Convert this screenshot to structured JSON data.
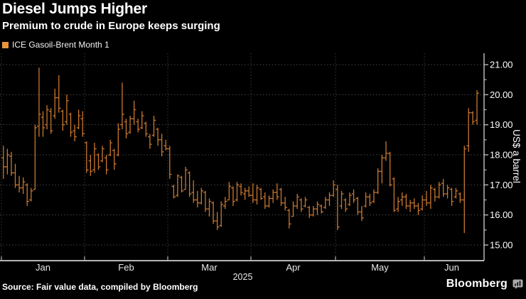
{
  "header": {
    "title": "Diesel Jumps Higher",
    "subtitle": "Premium to crude in Europe keeps surging"
  },
  "legend": {
    "label": "ICE Gasoil-Brent Month 1",
    "swatch_color": "#e8953c"
  },
  "chart_data": {
    "type": "ohlc",
    "title": "ICE Gasoil-Brent Month 1",
    "ylabel": "US$ a barrel",
    "x_year": "2025",
    "ylim": [
      14.5,
      21.4
    ],
    "y_ticks": [
      15,
      16,
      17,
      18,
      19,
      20,
      21
    ],
    "grid": "dotted horizontal at integers, dotted vertical at month starts",
    "legend_position": "top-left",
    "bar_color": "#c9772f",
    "axis_color": "#b5b5b5",
    "grid_color": "#474747",
    "months": [
      {
        "label": "Jan",
        "bars": [
          [
            17.9,
            18.3,
            17.2,
            17.6
          ],
          [
            17.6,
            18.2,
            17.35,
            18.0
          ],
          [
            17.95,
            18.1,
            17.3,
            17.4
          ],
          [
            17.4,
            17.7,
            16.9,
            17.0
          ],
          [
            17.0,
            17.3,
            16.75,
            16.9
          ],
          [
            16.9,
            17.25,
            16.7,
            17.1
          ],
          [
            17.0,
            17.05,
            16.3,
            16.45
          ],
          [
            16.5,
            16.9,
            16.45,
            16.8
          ],
          [
            16.85,
            19.0,
            16.85,
            18.9
          ],
          [
            18.95,
            20.9,
            18.6,
            19.35
          ],
          [
            19.25,
            19.45,
            18.6,
            18.9
          ],
          [
            19.0,
            19.65,
            18.85,
            19.5
          ],
          [
            19.45,
            19.55,
            18.7,
            18.8
          ],
          [
            19.3,
            20.2,
            19.2,
            19.9
          ],
          [
            19.9,
            20.65,
            19.4,
            19.55
          ],
          [
            19.45,
            19.5,
            18.8,
            19.0
          ],
          [
            19.1,
            20.0,
            19.0,
            19.8
          ],
          [
            19.35,
            19.4,
            18.6,
            18.75
          ],
          [
            18.8,
            19.0,
            18.45,
            18.6
          ],
          [
            18.9,
            19.5,
            18.85,
            19.3
          ],
          [
            19.2,
            19.45,
            18.6,
            18.7
          ]
        ]
      },
      {
        "label": "Feb",
        "bars": [
          [
            18.4,
            18.45,
            17.4,
            17.5
          ],
          [
            17.8,
            18.0,
            17.3,
            17.45
          ],
          [
            17.5,
            18.4,
            17.4,
            18.2
          ],
          [
            18.0,
            18.05,
            17.5,
            17.6
          ],
          [
            17.8,
            18.3,
            17.75,
            18.2
          ],
          [
            17.9,
            18.0,
            17.35,
            17.5
          ],
          [
            18.0,
            18.5,
            17.95,
            18.4
          ],
          [
            18.15,
            18.2,
            17.5,
            17.7
          ],
          [
            18.0,
            19.05,
            17.95,
            18.85
          ],
          [
            19.0,
            20.4,
            18.85,
            19.35
          ],
          [
            19.1,
            19.2,
            18.55,
            18.7
          ],
          [
            18.75,
            19.3,
            18.7,
            19.2
          ],
          [
            19.2,
            19.8,
            19.0,
            19.5
          ],
          [
            19.1,
            19.2,
            18.75,
            18.85
          ],
          [
            18.9,
            19.45,
            18.85,
            19.3
          ],
          [
            19.05,
            19.1,
            18.6,
            18.7
          ],
          [
            18.6,
            18.7,
            18.2,
            18.35
          ],
          [
            18.65,
            19.3,
            18.6,
            19.15
          ],
          [
            18.85,
            18.9,
            18.3,
            18.5
          ],
          [
            18.5,
            18.7,
            17.95,
            18.1
          ],
          [
            18.3,
            18.5,
            18.15,
            18.2
          ]
        ]
      },
      {
        "label": "Mar",
        "bars": [
          [
            18.2,
            18.3,
            17.2,
            17.35
          ],
          [
            16.95,
            17.0,
            16.55,
            16.6
          ],
          [
            16.65,
            17.35,
            16.6,
            17.3
          ],
          [
            17.25,
            17.3,
            16.75,
            16.8
          ],
          [
            16.85,
            17.6,
            16.85,
            17.5
          ],
          [
            17.4,
            17.45,
            16.6,
            16.7
          ],
          [
            16.75,
            17.15,
            16.4,
            16.5
          ],
          [
            16.5,
            16.8,
            16.25,
            16.4
          ],
          [
            16.4,
            16.9,
            16.35,
            16.8
          ],
          [
            16.75,
            16.8,
            16.1,
            16.2
          ],
          [
            16.2,
            16.55,
            15.95,
            16.45
          ],
          [
            16.4,
            16.45,
            15.7,
            15.8
          ],
          [
            15.8,
            16.1,
            15.5,
            15.6
          ],
          [
            15.65,
            16.45,
            15.6,
            16.35
          ],
          [
            16.3,
            16.6,
            16.2,
            16.45
          ],
          [
            16.5,
            17.1,
            16.5,
            16.95
          ],
          [
            16.9,
            16.95,
            16.3,
            16.45
          ],
          [
            16.5,
            17.1,
            16.45,
            17.0
          ],
          [
            16.95,
            17.05,
            16.65,
            16.75
          ],
          [
            16.7,
            16.9,
            16.5,
            16.8
          ],
          [
            16.8,
            16.95,
            16.6,
            16.65
          ]
        ]
      },
      {
        "label": "Apr",
        "bars": [
          [
            16.65,
            17.05,
            16.4,
            16.5
          ],
          [
            16.5,
            17.0,
            16.35,
            16.9
          ],
          [
            16.85,
            16.9,
            16.5,
            16.55
          ],
          [
            16.6,
            16.75,
            16.2,
            16.3
          ],
          [
            16.3,
            16.65,
            16.25,
            16.55
          ],
          [
            16.55,
            16.85,
            16.4,
            16.75
          ],
          [
            16.75,
            17.05,
            16.5,
            16.6
          ],
          [
            16.85,
            16.9,
            16.3,
            16.4
          ],
          [
            16.4,
            16.6,
            16.15,
            16.25
          ],
          [
            16.15,
            16.2,
            15.55,
            15.7
          ],
          [
            15.95,
            16.45,
            15.95,
            16.3
          ],
          [
            16.3,
            16.7,
            16.2,
            16.6
          ],
          [
            16.5,
            16.55,
            16.1,
            16.2
          ],
          [
            16.3,
            16.6,
            16.25,
            16.5
          ],
          [
            16.25,
            16.3,
            15.9,
            16.0
          ],
          [
            16.0,
            16.3,
            15.95,
            16.2
          ],
          [
            16.2,
            16.45,
            16.0,
            16.35
          ],
          [
            16.3,
            16.35,
            16.05,
            16.1
          ],
          [
            16.25,
            16.6,
            16.2,
            16.5
          ],
          [
            16.5,
            16.75,
            16.3,
            16.65
          ],
          [
            16.65,
            17.15,
            16.6,
            17.0
          ]
        ]
      },
      {
        "label": "May",
        "bars": [
          [
            16.85,
            17.0,
            15.5,
            15.6
          ],
          [
            16.3,
            16.8,
            16.2,
            16.7
          ],
          [
            16.5,
            16.55,
            16.1,
            16.2
          ],
          [
            16.35,
            16.75,
            16.3,
            16.65
          ],
          [
            16.7,
            16.85,
            16.4,
            16.5
          ],
          [
            16.55,
            16.6,
            16.0,
            16.1
          ],
          [
            16.1,
            16.3,
            15.8,
            15.9
          ],
          [
            16.3,
            16.75,
            16.25,
            16.6
          ],
          [
            16.6,
            16.7,
            16.3,
            16.4
          ],
          [
            16.45,
            16.85,
            16.4,
            16.75
          ],
          [
            16.75,
            17.55,
            16.7,
            17.45
          ],
          [
            17.45,
            18.0,
            17.05,
            17.9
          ],
          [
            17.9,
            18.45,
            17.8,
            18.05
          ],
          [
            18.05,
            18.1,
            16.95,
            17.0
          ],
          [
            17.2,
            17.25,
            16.1,
            16.15
          ],
          [
            16.2,
            16.6,
            16.1,
            16.45
          ],
          [
            16.5,
            16.75,
            16.3,
            16.6
          ],
          [
            16.6,
            16.7,
            16.2,
            16.3
          ],
          [
            16.3,
            16.5,
            16.1,
            16.4
          ],
          [
            16.4,
            16.55,
            16.2,
            16.3
          ],
          [
            16.3,
            16.4,
            16.0,
            16.15
          ],
          [
            16.2,
            16.65,
            16.15,
            16.5
          ]
        ]
      },
      {
        "label": "Jun",
        "bars": [
          [
            16.5,
            16.8,
            16.3,
            16.4
          ],
          [
            16.4,
            17.0,
            16.2,
            16.9
          ],
          [
            16.85,
            16.9,
            16.45,
            16.6
          ],
          [
            16.6,
            17.1,
            16.55,
            17.0
          ],
          [
            17.05,
            17.2,
            16.6,
            16.7
          ],
          [
            16.7,
            17.0,
            16.55,
            16.9
          ],
          [
            16.85,
            16.9,
            16.3,
            16.45
          ],
          [
            16.6,
            16.9,
            16.55,
            16.8
          ],
          [
            16.7,
            16.75,
            16.4,
            16.5
          ],
          [
            16.5,
            18.3,
            15.4,
            18.2
          ],
          [
            18.3,
            19.55,
            18.1,
            19.4
          ],
          [
            19.4,
            19.45,
            19.0,
            19.1
          ],
          [
            19.15,
            20.15,
            19.0,
            20.05
          ]
        ]
      }
    ]
  },
  "footer": {
    "source": "Source: Fair value data, compiled by Bloomberg",
    "brand": "Bloomberg"
  }
}
